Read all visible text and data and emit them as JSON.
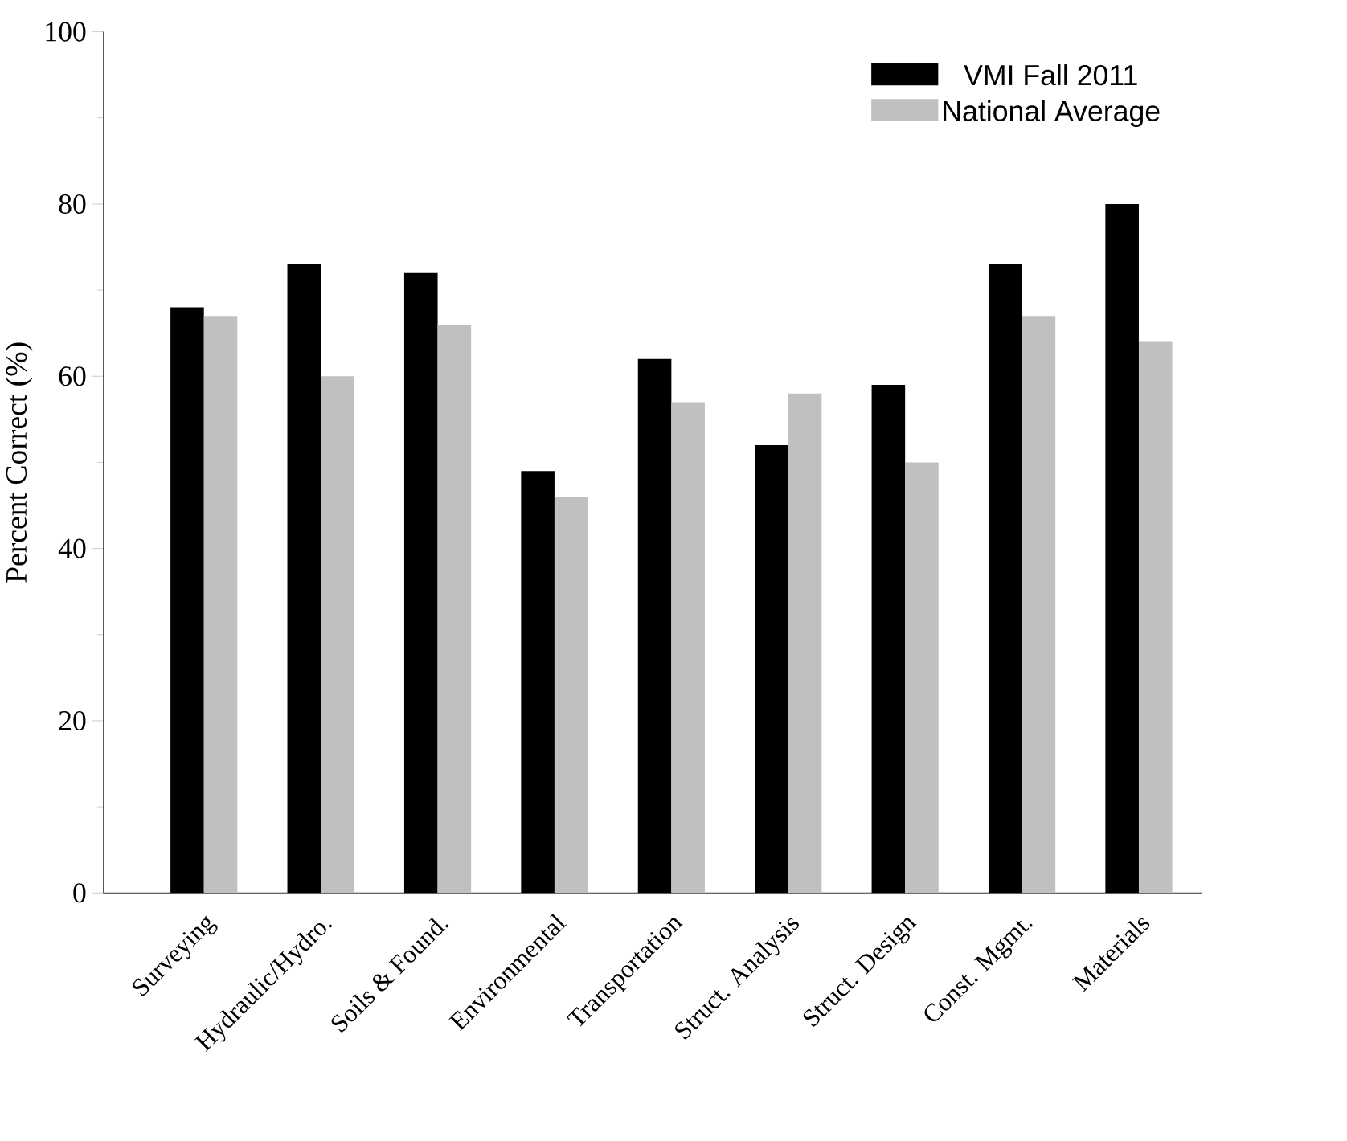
{
  "chart_data": {
    "type": "bar",
    "categories": [
      "Surveying",
      "Hydraulic/Hydro.",
      "Soils & Found.",
      "Environmental",
      "Transportation",
      "Struct. Analysis",
      "Struct. Design",
      "Const. Mgmt.",
      "Materials"
    ],
    "series": [
      {
        "name": "VMI Fall 2011",
        "color": "#000000",
        "values": [
          68,
          73,
          72,
          49,
          62,
          52,
          59,
          73,
          80
        ]
      },
      {
        "name": "National Average",
        "color": "#c0c0c0",
        "values": [
          67,
          60,
          66,
          46,
          57,
          58,
          50,
          67,
          64
        ]
      }
    ],
    "ylabel": "Percent Correct (%)",
    "ylim": [
      0,
      100
    ],
    "yticks": [
      0,
      20,
      40,
      60,
      80,
      100
    ],
    "legend": "top right"
  }
}
